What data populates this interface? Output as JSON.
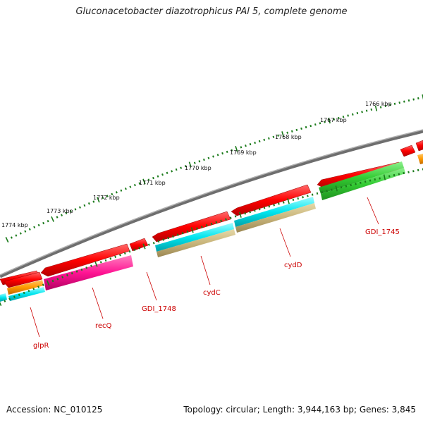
{
  "title": "Gluconacetobacter diazotrophicus PAl 5, complete genome",
  "accession": "Accession: NC_010125",
  "summary": "Topology: circular; Length: 3,944,163 bp; Genes: 3,845",
  "kbp_labels": [
    "1774 kbp",
    "1773 kbp",
    "1772 kbp",
    "1771 kbp",
    "1770 kbp",
    "1769 kbp",
    "1768 kbp",
    "1767 kbp",
    "1766 kbp"
  ],
  "gene_labels": [
    "glpR",
    "recQ",
    "GDI_1748",
    "cydC",
    "cydD",
    "GDI_1745"
  ],
  "colors": {
    "backbone": "#808080",
    "gene": "#ff0000",
    "cyan": "#00e5ee",
    "orange": "#ff9900",
    "magenta": "#ff1493",
    "tan": "#c8b47a",
    "green": "#33cc33",
    "tick": "#1a7a1a",
    "label": "#cc0000"
  }
}
